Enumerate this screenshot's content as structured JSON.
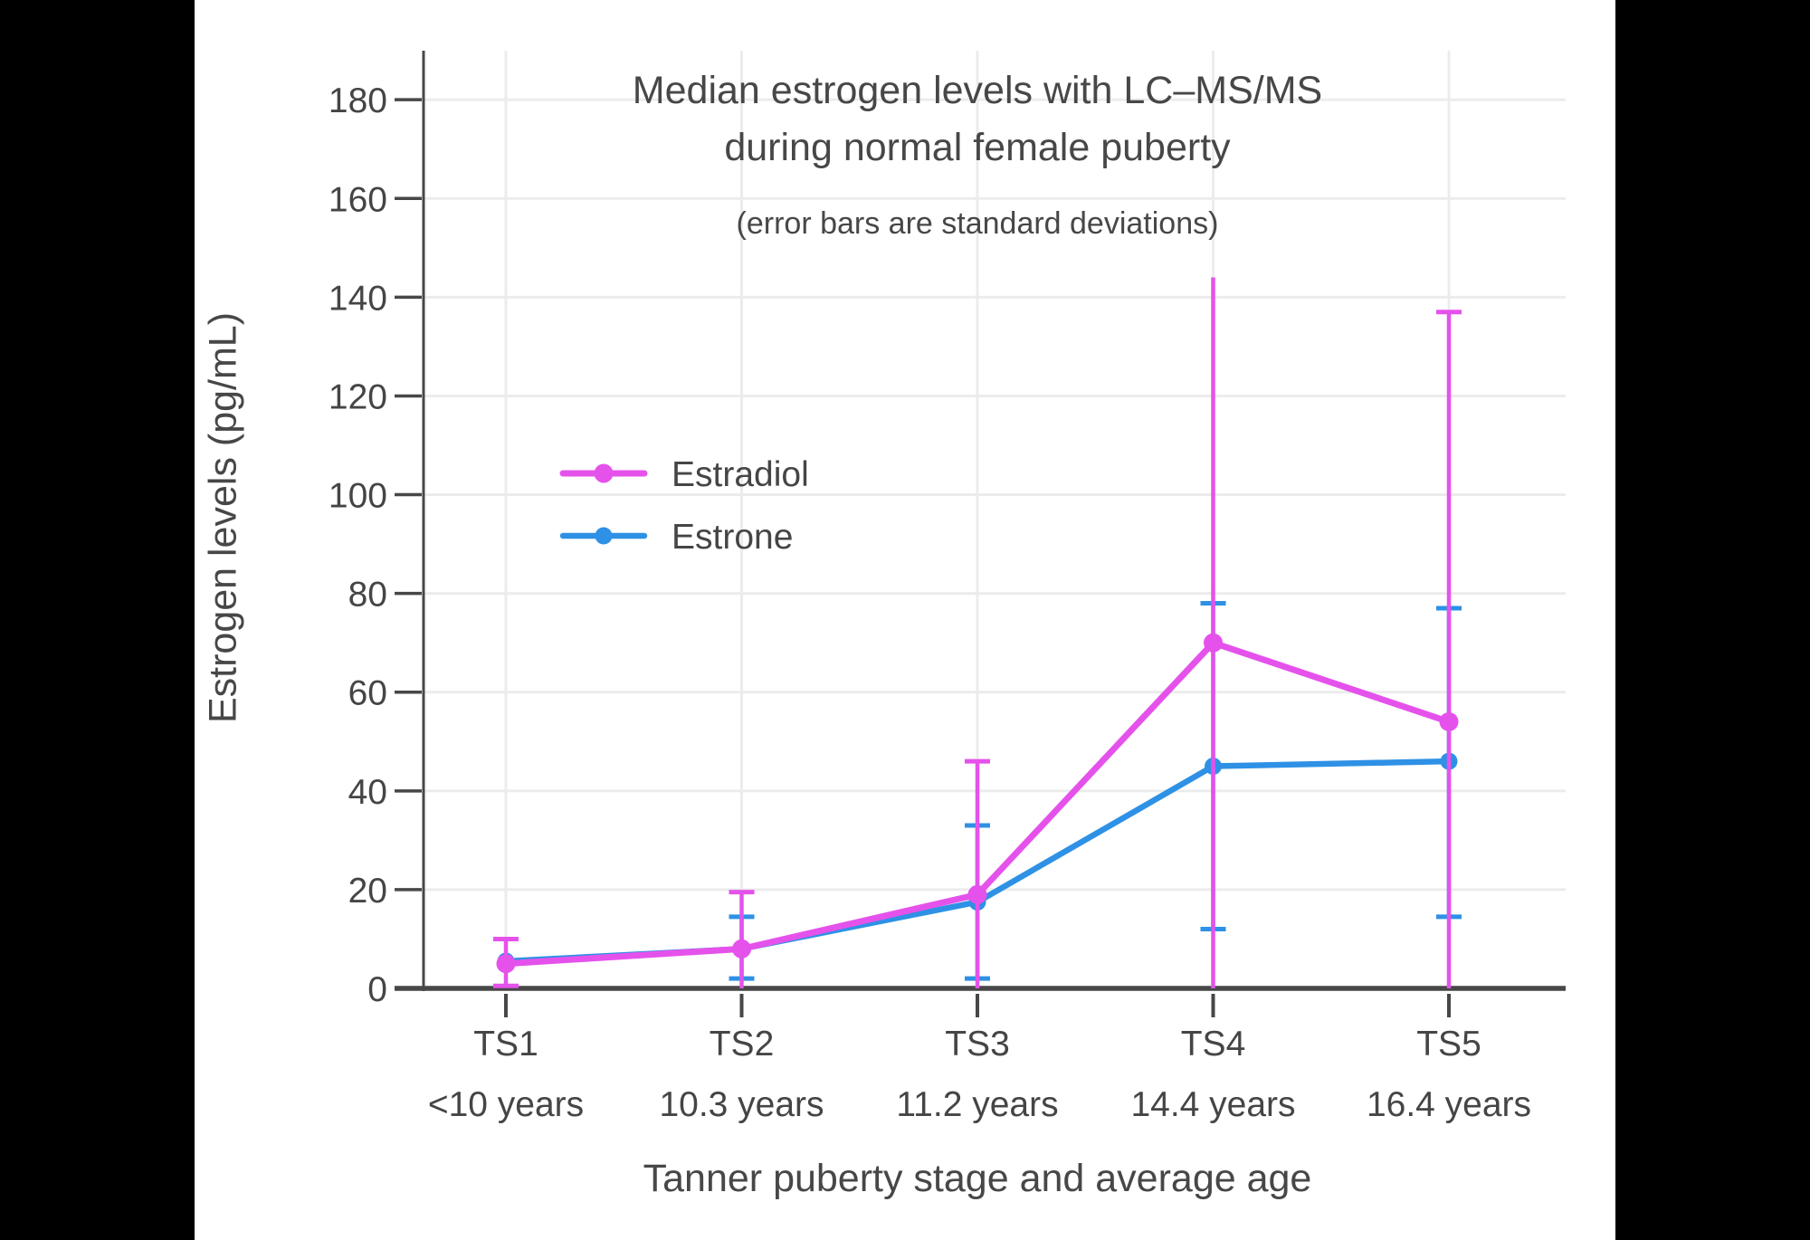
{
  "page": {
    "background": "#000000",
    "panel_background": "#FFFFFF"
  },
  "colors": {
    "axis": "#474747",
    "grid": "#ECECEC",
    "text": "#454545"
  },
  "chart_data": {
    "type": "line",
    "title": [
      "Median estrogen levels with LC–MS/MS",
      "during normal female puberty"
    ],
    "subtitle": "(error bars are standard deviations)",
    "xlabel": "Tanner puberty stage and average age",
    "ylabel": "Estrogen levels (pg/mL)",
    "ylim": [
      0,
      190
    ],
    "yticks": [
      0,
      20,
      40,
      60,
      80,
      100,
      120,
      140,
      160,
      180
    ],
    "grid": true,
    "legend_position": "middle-left",
    "error_bar_meaning": "standard deviations",
    "categories": [
      {
        "stage": "TS1",
        "age": "<10 years"
      },
      {
        "stage": "TS2",
        "age": "10.3 years"
      },
      {
        "stage": "TS3",
        "age": "11.2 years"
      },
      {
        "stage": "TS4",
        "age": "14.4 years"
      },
      {
        "stage": "TS5",
        "age": "16.4 years"
      }
    ],
    "series": [
      {
        "name": "Estradiol",
        "color": "#E552EB",
        "values": [
          5,
          8,
          19,
          70,
          54
        ],
        "err_upper": [
          10,
          19.5,
          46,
          144,
          137
        ],
        "err_upper_cap": [
          true,
          true,
          true,
          false,
          true
        ],
        "err_lower": [
          0.5,
          0,
          0,
          0,
          0
        ],
        "err_lower_cap": [
          true,
          false,
          false,
          false,
          false
        ],
        "marker_radius": 10.5,
        "line_width": 7
      },
      {
        "name": "Estrone",
        "color": "#2E91E5",
        "values": [
          5.5,
          8,
          17.5,
          45,
          46
        ],
        "err_upper": [
          null,
          14.5,
          33,
          78,
          77
        ],
        "err_upper_cap": [
          false,
          true,
          true,
          true,
          true
        ],
        "err_lower": [
          null,
          2,
          2,
          12,
          14.5
        ],
        "err_lower_cap": [
          false,
          true,
          true,
          true,
          true
        ],
        "marker_radius": 9.5,
        "line_width": 6.5
      }
    ],
    "draw_order": [
      "Estrone",
      "Estradiol"
    ]
  }
}
